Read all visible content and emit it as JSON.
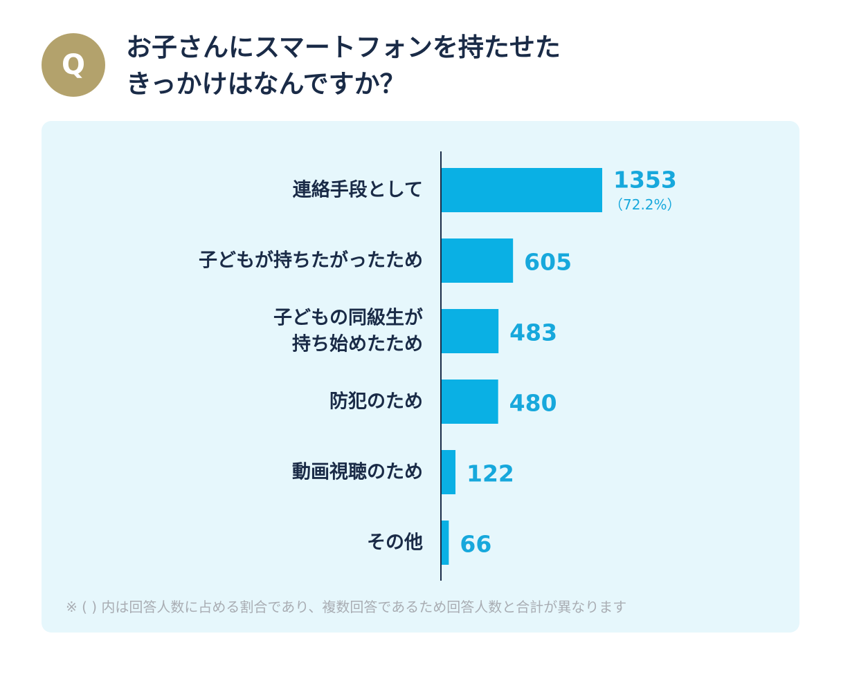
{
  "header": {
    "badge": "Q",
    "title_line1": "お子さんにスマートフォンを持たせた",
    "title_line2": "きっかけはなんですか？"
  },
  "chart_data": {
    "type": "bar",
    "orientation": "horizontal",
    "categories": [
      [
        "連絡手段として"
      ],
      [
        "子どもが持ちたがったため"
      ],
      [
        "子どもの同級生が",
        "持ち始めたため"
      ],
      [
        "防犯のため"
      ],
      [
        "動画視聴のため"
      ],
      [
        "その他"
      ]
    ],
    "values": [
      1353,
      605,
      483,
      480,
      122,
      66
    ],
    "value_labels": [
      "1353",
      "605",
      "483",
      "480",
      "122",
      "66"
    ],
    "percent_labels": [
      "（72.2%）",
      "",
      "",
      "",
      "",
      ""
    ],
    "xlim": [
      0,
      1353
    ],
    "colors": {
      "bar": "#0ab0e4",
      "axis": "#1a2b47",
      "label": "#1a2b47",
      "value": "#17a8dc"
    }
  },
  "footnote": "※ ( ) 内は回答人数に占める割合であり、複数回答であるため回答人数と合計が異なります"
}
